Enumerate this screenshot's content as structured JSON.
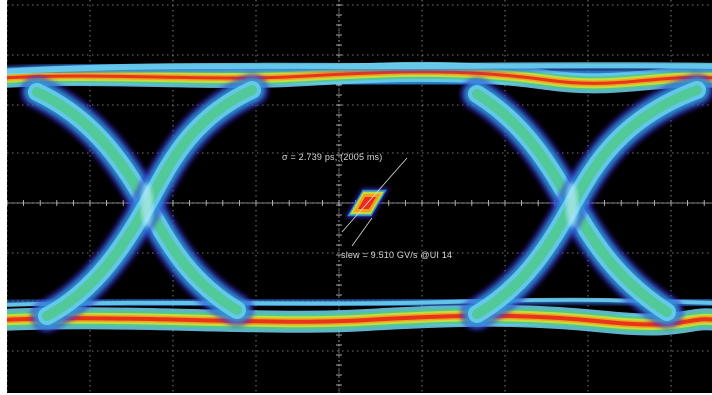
{
  "display": {
    "background_color": "#000000",
    "frame_color": "#ffffff",
    "grid_color": "#cfcfcf",
    "grid": "on",
    "grid_divisions": {
      "horizontal": 10,
      "vertical": 8
    }
  },
  "eye_diagram": {
    "description_kind": "eye-diagram-density-plot",
    "heatmap_colors": [
      "#3d2bd6",
      "#2a9ad8",
      "#6fd2f0",
      "#4fc98a",
      "#d8e02a",
      "#f59a1c",
      "#e8201a"
    ],
    "eye_crossings": 2
  },
  "annotations": {
    "jitter_measurement": "σ = 2.739 ps, (2005 ms)",
    "slew_measurement": "slew = 9.510 GV/s @UI 14"
  }
}
